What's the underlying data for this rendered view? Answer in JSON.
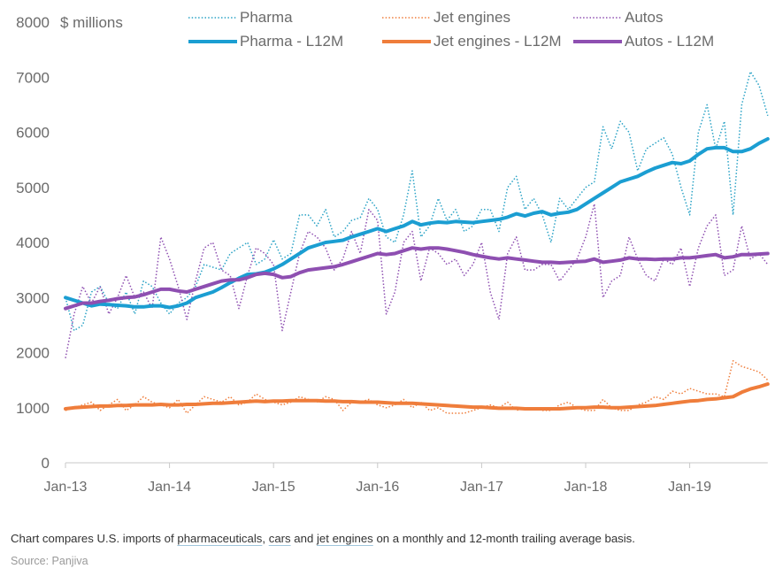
{
  "chart_data": {
    "type": "line",
    "ylabel": "$ millions",
    "ylim": [
      0,
      8000
    ],
    "yticks": [
      0,
      1000,
      2000,
      3000,
      4000,
      5000,
      6000,
      7000,
      8000
    ],
    "xtick_labels": [
      "Jan-13",
      "Jan-14",
      "Jan-15",
      "Jan-16",
      "Jan-17",
      "Jan-18",
      "Jan-19"
    ],
    "x_start": "Jan-13",
    "x_end": "Jun-19",
    "grid": false,
    "legend_position": "top",
    "series": [
      {
        "name": "Pharma",
        "style": "dotted",
        "color": "#2ba3c6",
        "values": [
          3000,
          2400,
          2500,
          3100,
          3200,
          2900,
          2800,
          3100,
          2700,
          3300,
          3200,
          2900,
          2700,
          2900,
          3000,
          3200,
          3600,
          3550,
          3500,
          3800,
          3900,
          4000,
          3600,
          3700,
          4050,
          3700,
          3800,
          4500,
          4500,
          4300,
          4600,
          4100,
          4200,
          4400,
          4450,
          4800,
          4600,
          4100,
          4000,
          4500,
          5300,
          4100,
          4300,
          4800,
          4400,
          4600,
          4200,
          4300,
          4600,
          4600,
          4200,
          5000,
          5200,
          4600,
          4800,
          4500,
          4000,
          4800,
          4600,
          4800,
          5000,
          5100,
          6100,
          5700,
          6200,
          6000,
          5300,
          5700,
          5800,
          5900,
          5600,
          5000,
          4500,
          6000,
          6500,
          5700,
          6200,
          4500,
          6500,
          7100,
          6850,
          6300
        ]
      },
      {
        "name": "Jet engines",
        "style": "dotted",
        "color": "#ef7d3b",
        "values": [
          950,
          1000,
          1050,
          1100,
          950,
          1050,
          1150,
          950,
          1050,
          1200,
          1100,
          1050,
          1000,
          1150,
          900,
          1050,
          1200,
          1150,
          1100,
          1200,
          1050,
          1100,
          1250,
          1150,
          1100,
          1050,
          1100,
          1200,
          1150,
          1100,
          1200,
          1150,
          950,
          1100,
          1100,
          1150,
          1050,
          1000,
          1050,
          1150,
          1000,
          1100,
          950,
          1000,
          900,
          900,
          900,
          950,
          1000,
          1050,
          1000,
          1100,
          950,
          1000,
          1000,
          950,
          950,
          1050,
          1100,
          1000,
          950,
          950,
          1150,
          1000,
          950,
          950,
          1050,
          1100,
          1200,
          1150,
          1300,
          1250,
          1350,
          1300,
          1250,
          1250,
          1200,
          1850,
          1750,
          1700,
          1650,
          1500
        ]
      },
      {
        "name": "Autos",
        "style": "dotted",
        "color": "#8e4fb1",
        "values": [
          1900,
          2700,
          3200,
          2900,
          3200,
          2700,
          3000,
          3400,
          3000,
          3100,
          2800,
          4100,
          3700,
          3200,
          2600,
          3300,
          3900,
          4000,
          3500,
          3400,
          2800,
          3400,
          3900,
          3800,
          3600,
          2400,
          3100,
          3800,
          4200,
          4100,
          3900,
          3500,
          3700,
          4200,
          3800,
          4600,
          4400,
          2700,
          3100,
          4000,
          4200,
          3300,
          3900,
          3800,
          3600,
          3700,
          3400,
          3600,
          4000,
          3100,
          2600,
          3800,
          4100,
          3500,
          3500,
          3600,
          3600,
          3300,
          3500,
          3700,
          4100,
          4700,
          3000,
          3300,
          3400,
          4100,
          3700,
          3400,
          3300,
          3700,
          3600,
          3900,
          3200,
          3900,
          4300,
          4500,
          3400,
          3500,
          4300,
          3700,
          3800,
          3600
        ]
      },
      {
        "name": "Pharma - L12M",
        "style": "solid",
        "color": "#1b9ed2",
        "values": [
          3000,
          2950,
          2900,
          2850,
          2880,
          2870,
          2860,
          2850,
          2830,
          2830,
          2850,
          2850,
          2820,
          2850,
          2900,
          3000,
          3050,
          3100,
          3180,
          3270,
          3350,
          3420,
          3430,
          3460,
          3520,
          3600,
          3700,
          3800,
          3900,
          3950,
          4000,
          4020,
          4040,
          4100,
          4150,
          4200,
          4250,
          4200,
          4250,
          4300,
          4380,
          4320,
          4350,
          4370,
          4360,
          4380,
          4370,
          4360,
          4380,
          4400,
          4420,
          4460,
          4520,
          4480,
          4530,
          4560,
          4500,
          4530,
          4550,
          4600,
          4700,
          4800,
          4900,
          5000,
          5100,
          5150,
          5200,
          5280,
          5350,
          5400,
          5450,
          5430,
          5480,
          5600,
          5700,
          5720,
          5720,
          5650,
          5650,
          5700,
          5800,
          5880
        ]
      },
      {
        "name": "Jet engines - L12M",
        "style": "solid",
        "color": "#ef7d3b",
        "values": [
          980,
          1000,
          1010,
          1020,
          1030,
          1030,
          1040,
          1040,
          1050,
          1050,
          1050,
          1060,
          1050,
          1050,
          1060,
          1060,
          1070,
          1080,
          1080,
          1090,
          1100,
          1110,
          1120,
          1110,
          1120,
          1120,
          1130,
          1130,
          1130,
          1130,
          1120,
          1120,
          1110,
          1110,
          1100,
          1100,
          1100,
          1090,
          1080,
          1080,
          1080,
          1070,
          1060,
          1050,
          1040,
          1030,
          1020,
          1010,
          1010,
          1000,
          990,
          990,
          990,
          980,
          980,
          980,
          980,
          980,
          990,
          1000,
          1000,
          1010,
          1010,
          1000,
          1000,
          1010,
          1020,
          1030,
          1040,
          1060,
          1080,
          1100,
          1120,
          1130,
          1150,
          1160,
          1180,
          1200,
          1280,
          1340,
          1380,
          1430
        ]
      },
      {
        "name": "Autos - L12M",
        "style": "solid",
        "color": "#8e4fb1",
        "values": [
          2800,
          2850,
          2900,
          2900,
          2930,
          2950,
          2980,
          3000,
          3010,
          3050,
          3100,
          3150,
          3150,
          3120,
          3100,
          3150,
          3200,
          3250,
          3300,
          3320,
          3320,
          3360,
          3420,
          3440,
          3420,
          3360,
          3380,
          3450,
          3500,
          3520,
          3540,
          3560,
          3600,
          3650,
          3700,
          3750,
          3800,
          3780,
          3800,
          3850,
          3900,
          3880,
          3900,
          3900,
          3880,
          3850,
          3820,
          3780,
          3750,
          3720,
          3700,
          3720,
          3700,
          3680,
          3660,
          3640,
          3640,
          3630,
          3640,
          3650,
          3660,
          3700,
          3640,
          3660,
          3680,
          3720,
          3700,
          3700,
          3690,
          3700,
          3700,
          3720,
          3720,
          3740,
          3760,
          3780,
          3720,
          3740,
          3780,
          3780,
          3790,
          3800
        ]
      }
    ]
  },
  "caption": {
    "prefix": "Chart compares U.S. imports of ",
    "link_pharma": "pharmaceuticals",
    "comma": ", ",
    "link_cars": "cars",
    "and": " and ",
    "link_jet": "jet engines",
    "suffix": " on a monthly and 12-month trailing average basis."
  },
  "source": "Source: Panjiva"
}
